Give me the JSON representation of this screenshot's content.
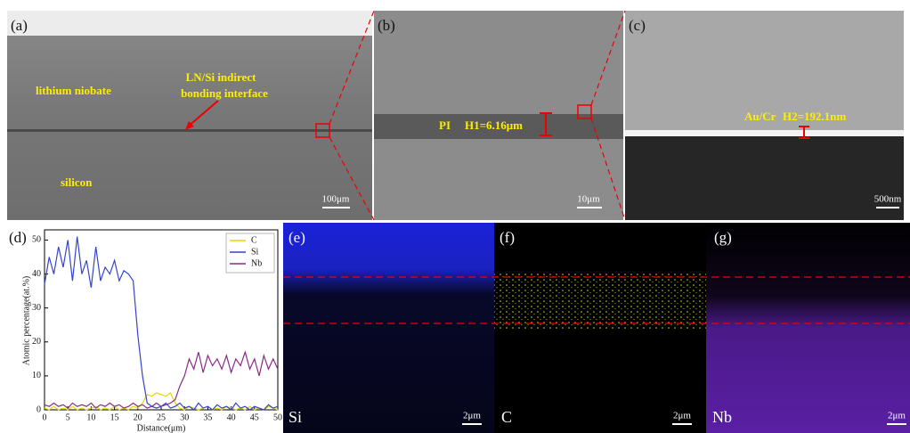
{
  "panels": {
    "a": {
      "label": "(a)",
      "text1": "lithium niobate",
      "text2": "LN/Si indirect",
      "text3": "bonding interface",
      "text4": "silicon",
      "scale": "100μm"
    },
    "b": {
      "label": "(b)",
      "text1": "PI",
      "text2": "H1=6.16μm",
      "scale": "10μm"
    },
    "c": {
      "label": "(c)",
      "text1": "Au/Cr",
      "text2": "H2=192.1nm",
      "scale": "500nm"
    },
    "e": {
      "label": "(e)",
      "element": "Si",
      "scale": "2μm"
    },
    "f": {
      "label": "(f)",
      "element": "C",
      "scale": "2μm"
    },
    "g": {
      "label": "(g)",
      "element": "Nb",
      "scale": "2μm"
    }
  },
  "chart_data": {
    "type": "line",
    "label": "(d)",
    "x_label": "Distance(μm)",
    "y_label": "Atomic percentage(at.%)",
    "x": [
      0,
      1,
      2,
      3,
      4,
      5,
      6,
      7,
      8,
      9,
      10,
      11,
      12,
      13,
      14,
      15,
      16,
      17,
      18,
      19,
      20,
      21,
      22,
      23,
      24,
      25,
      26,
      27,
      28,
      29,
      30,
      31,
      32,
      33,
      34,
      35,
      36,
      37,
      38,
      39,
      40,
      41,
      42,
      43,
      44,
      45,
      46,
      47,
      48,
      49,
      50
    ],
    "xlim": [
      0,
      50
    ],
    "xticks": [
      0,
      5,
      10,
      15,
      20,
      25,
      30,
      35,
      40,
      45,
      50
    ],
    "ylim": [
      0,
      53
    ],
    "yticks": [
      0,
      10,
      20,
      30,
      40,
      50
    ],
    "legend": "upper right",
    "series": [
      {
        "name": "C",
        "color": "#e0d800",
        "values": [
          0.5,
          0,
          1,
          0,
          0.5,
          0,
          1,
          0,
          0.5,
          0,
          0.5,
          1,
          0,
          0.5,
          0,
          1,
          0,
          0.5,
          0,
          1,
          0.5,
          2,
          4.5,
          4,
          5,
          4.5,
          4,
          5,
          2,
          0.5,
          0,
          1,
          0.5,
          0,
          0.5,
          1,
          0,
          0.5,
          0,
          1,
          0.5,
          0,
          0.5,
          0,
          1,
          0,
          0.5,
          0,
          1,
          0.5,
          0
        ]
      },
      {
        "name": "Si",
        "color": "#3444cc",
        "values": [
          37,
          45,
          40,
          48,
          42,
          50,
          38,
          51,
          40,
          44,
          36,
          48,
          38,
          42,
          40,
          44,
          38,
          41,
          40,
          38,
          22,
          10,
          2,
          1,
          0.5,
          1,
          2,
          0.5,
          1,
          2,
          0.5,
          1,
          0,
          2,
          0.5,
          1,
          0,
          1.5,
          0.5,
          1,
          0,
          2,
          0.5,
          1,
          0,
          1,
          0.5,
          0,
          1.5,
          0.5,
          1
        ]
      },
      {
        "name": "Nb",
        "color": "#8a2a88",
        "values": [
          1.5,
          1,
          2,
          1,
          1.5,
          0.5,
          2,
          1,
          1.5,
          1,
          2,
          0.5,
          1.5,
          1,
          2,
          1,
          1.5,
          0.5,
          1,
          2,
          1,
          1.5,
          0.5,
          1,
          2,
          1,
          1.5,
          2,
          3,
          7,
          10,
          15,
          12,
          17,
          11,
          16,
          13,
          15,
          12,
          16,
          11,
          15,
          13,
          17,
          12,
          15,
          10,
          16,
          12,
          15,
          12
        ]
      }
    ]
  }
}
